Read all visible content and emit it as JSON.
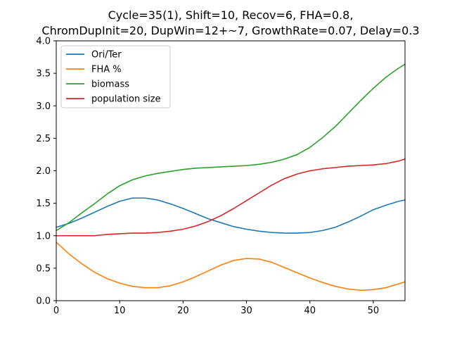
{
  "chart_data": {
    "type": "line",
    "title_lines": [
      "Cycle=35(1), Shift=10, Recov=6, FHA=0.8,",
      "ChromDupInit=20, DupWin=12+~7, GrowthRate=0.07, Delay=0.3"
    ],
    "xlabel": "",
    "ylabel": "",
    "xlim": [
      0,
      55
    ],
    "ylim": [
      0,
      4
    ],
    "xticks": [
      0,
      10,
      20,
      30,
      40,
      50
    ],
    "yticks": [
      0.0,
      0.5,
      1.0,
      1.5,
      2.0,
      2.5,
      3.0,
      3.5,
      4.0
    ],
    "ytick_labels": [
      "0.0",
      "0.5",
      "1.0",
      "1.5",
      "2.0",
      "2.5",
      "3.0",
      "3.5",
      "4.0"
    ],
    "grid": false,
    "legend_position": "top-left",
    "series": [
      {
        "name": "Ori/Ter",
        "color": "#1f77b4",
        "x": [
          0,
          2,
          4,
          6,
          8,
          10,
          12,
          14,
          16,
          18,
          20,
          22,
          24,
          26,
          28,
          30,
          32,
          34,
          36,
          38,
          40,
          42,
          44,
          46,
          48,
          50,
          52,
          54,
          55
        ],
        "y": [
          1.13,
          1.19,
          1.27,
          1.36,
          1.45,
          1.53,
          1.58,
          1.58,
          1.55,
          1.49,
          1.42,
          1.34,
          1.26,
          1.2,
          1.14,
          1.1,
          1.07,
          1.05,
          1.04,
          1.04,
          1.05,
          1.08,
          1.13,
          1.21,
          1.3,
          1.4,
          1.47,
          1.53,
          1.55
        ]
      },
      {
        "name": "FHA %",
        "color": "#ff7f0e",
        "x": [
          0,
          2,
          4,
          6,
          8,
          10,
          12,
          14,
          16,
          18,
          20,
          22,
          24,
          26,
          28,
          30,
          32,
          34,
          36,
          38,
          40,
          42,
          44,
          46,
          48,
          50,
          52,
          54,
          55
        ],
        "y": [
          0.9,
          0.72,
          0.57,
          0.44,
          0.34,
          0.27,
          0.22,
          0.2,
          0.2,
          0.23,
          0.29,
          0.37,
          0.46,
          0.55,
          0.62,
          0.65,
          0.64,
          0.59,
          0.51,
          0.43,
          0.35,
          0.28,
          0.22,
          0.18,
          0.16,
          0.17,
          0.2,
          0.26,
          0.29
        ]
      },
      {
        "name": "biomass",
        "color": "#2ca02c",
        "x": [
          0,
          2,
          4,
          6,
          8,
          10,
          12,
          14,
          16,
          18,
          20,
          22,
          24,
          26,
          28,
          30,
          32,
          34,
          36,
          38,
          40,
          42,
          44,
          46,
          48,
          50,
          52,
          54,
          55
        ],
        "y": [
          1.08,
          1.2,
          1.35,
          1.49,
          1.64,
          1.77,
          1.86,
          1.92,
          1.96,
          1.99,
          2.02,
          2.04,
          2.05,
          2.06,
          2.07,
          2.08,
          2.1,
          2.13,
          2.18,
          2.25,
          2.36,
          2.51,
          2.68,
          2.88,
          3.08,
          3.27,
          3.44,
          3.58,
          3.64
        ]
      },
      {
        "name": "population size",
        "color": "#d62728",
        "x": [
          0,
          2,
          4,
          6,
          8,
          10,
          12,
          14,
          16,
          18,
          20,
          22,
          24,
          26,
          28,
          30,
          32,
          34,
          36,
          38,
          40,
          42,
          44,
          46,
          48,
          50,
          52,
          54,
          55
        ],
        "y": [
          1.0,
          1.0,
          1.0,
          1.0,
          1.02,
          1.03,
          1.04,
          1.04,
          1.05,
          1.07,
          1.1,
          1.15,
          1.22,
          1.31,
          1.42,
          1.54,
          1.66,
          1.78,
          1.88,
          1.95,
          2.0,
          2.03,
          2.05,
          2.07,
          2.08,
          2.09,
          2.11,
          2.15,
          2.18
        ]
      }
    ]
  }
}
